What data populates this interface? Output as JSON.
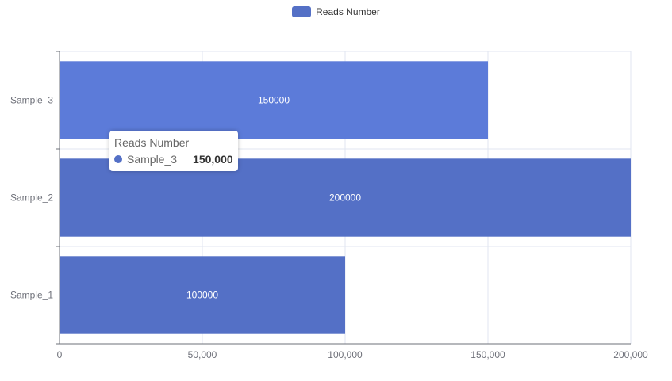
{
  "legend": {
    "label": "Reads Number",
    "color": "#5470c6"
  },
  "tooltip": {
    "title": "Reads Number",
    "item_name": "Sample_3",
    "item_value": "150,000",
    "color": "#5470c6"
  },
  "chart_data": {
    "type": "bar",
    "orientation": "horizontal",
    "categories": [
      "Sample_1",
      "Sample_2",
      "Sample_3"
    ],
    "series": [
      {
        "name": "Reads Number",
        "values": [
          100000,
          200000,
          150000
        ],
        "color": "#5470c6"
      }
    ],
    "data_labels": [
      "100000",
      "200000",
      "150000"
    ],
    "xlim": [
      0,
      200000
    ],
    "x_ticks": [
      0,
      50000,
      100000,
      150000,
      200000
    ],
    "x_tick_labels": [
      "0",
      "50,000",
      "100,000",
      "150,000",
      "200,000"
    ],
    "grid": true,
    "legend_position": "top-center",
    "highlighted_category": "Sample_3",
    "highlight_color": "#5c7bd9"
  }
}
